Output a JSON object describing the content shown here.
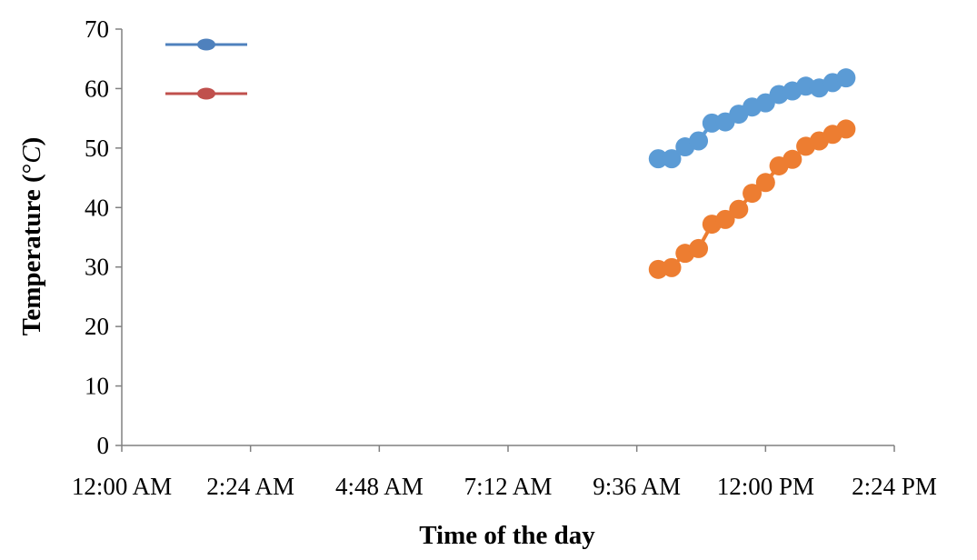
{
  "chart_data": {
    "type": "line",
    "title": "",
    "xlabel": "Time of the day",
    "ylabel": "Temperature (°C)",
    "ylabel_parts": [
      "Temperature (",
      "°",
      "C",
      ")"
    ],
    "ylim": [
      0,
      70
    ],
    "yticks": [
      0,
      10,
      20,
      30,
      40,
      50,
      60,
      70
    ],
    "xlim_hours": [
      0,
      14.4
    ],
    "xticks": [
      {
        "hour": 0,
        "label": "12:00 AM"
      },
      {
        "hour": 2.4,
        "label": "2:24 AM"
      },
      {
        "hour": 4.8,
        "label": "4:48 AM"
      },
      {
        "hour": 7.2,
        "label": "7:12 AM"
      },
      {
        "hour": 9.6,
        "label": "9:36 AM"
      },
      {
        "hour": 12,
        "label": "12:00 PM"
      },
      {
        "hour": 14.4,
        "label": "2:24 PM"
      }
    ],
    "grid": false,
    "legend": {
      "position": "top-left",
      "entries_shown_without_text": true
    },
    "series": [
      {
        "color": "#5b9bd5",
        "legend_color": "#4f81bd",
        "x_hours": [
          10,
          10.25,
          10.5,
          10.75,
          11,
          11.25,
          11.5,
          11.75,
          12,
          12.25,
          12.5,
          12.75,
          13,
          13.25,
          13.5
        ],
        "values": [
          48.2,
          48.2,
          50.2,
          51.2,
          54.2,
          54.4,
          55.7,
          56.9,
          57.6,
          59.0,
          59.6,
          60.4,
          60.1,
          61.0,
          61.8
        ]
      },
      {
        "color": "#ed7d31",
        "legend_color": "#c0504d",
        "x_hours": [
          10,
          10.25,
          10.5,
          10.75,
          11,
          11.25,
          11.5,
          11.75,
          12,
          12.25,
          12.5,
          12.75,
          13,
          13.25,
          13.5
        ],
        "values": [
          29.6,
          29.9,
          32.3,
          33.1,
          37.2,
          38.0,
          39.7,
          42.4,
          44.2,
          47.0,
          48.1,
          50.3,
          51.2,
          52.3,
          53.2
        ]
      }
    ]
  }
}
